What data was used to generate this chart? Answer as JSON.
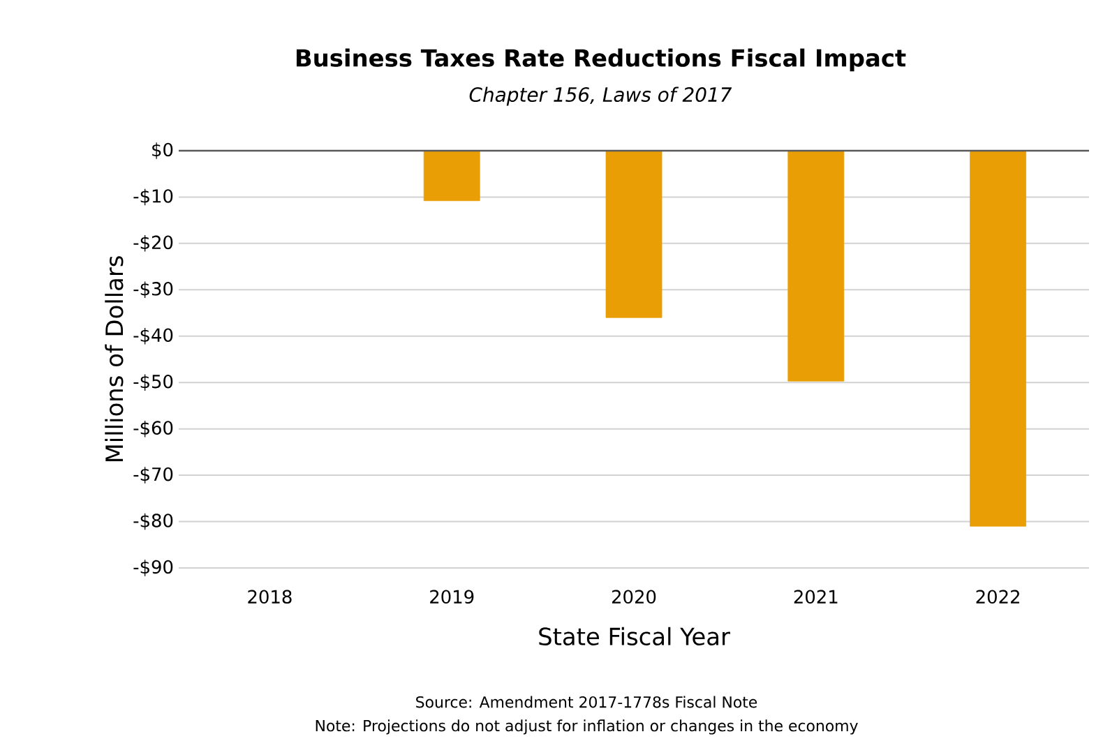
{
  "chart_data": {
    "type": "bar",
    "title": "Business Taxes Rate Reductions Fiscal Impact",
    "subtitle": "*Chapter 156, Laws of 2017*",
    "xlabel": "State Fiscal Year",
    "ylabel": "Millions of Dollars",
    "categories": [
      "2018",
      "2019",
      "2020",
      "2021",
      "2022"
    ],
    "values": [
      0,
      -10.8,
      -36,
      -49.7,
      -81
    ],
    "color": "#e89e04",
    "ylim": [
      -90,
      0
    ],
    "yticks": [
      {
        "value": 0,
        "label": "$0"
      },
      {
        "value": -10,
        "label": "-$10"
      },
      {
        "value": -20,
        "label": "-$20"
      },
      {
        "value": -30,
        "label": "-$30"
      },
      {
        "value": -40,
        "label": "-$40"
      },
      {
        "value": -50,
        "label": "-$50"
      },
      {
        "value": -60,
        "label": "-$60"
      },
      {
        "value": -70,
        "label": "-$70"
      },
      {
        "value": -80,
        "label": "-$80"
      },
      {
        "value": -90,
        "label": "-$90"
      }
    ],
    "grid": "y",
    "annotations": [
      "Source: Amendment 2017-1778s Fiscal Note",
      "Note: Projections do not adjust for inflation or changes in the economy"
    ]
  }
}
